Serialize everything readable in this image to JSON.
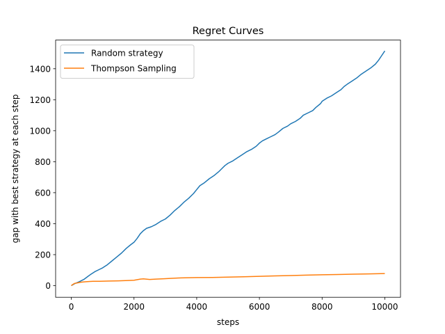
{
  "chart_data": {
    "type": "line",
    "title": "Regret Curves",
    "xlabel": "steps",
    "ylabel": "gap with best strategy at each step",
    "xlim": [
      -500,
      10500
    ],
    "ylim": [
      -75,
      1585
    ],
    "xticks": [
      0,
      2000,
      4000,
      6000,
      8000,
      10000
    ],
    "xtick_labels": [
      "0",
      "2000",
      "4000",
      "6000",
      "8000",
      "10000"
    ],
    "yticks": [
      0,
      200,
      400,
      600,
      800,
      1000,
      1200,
      1400
    ],
    "ytick_labels": [
      "0",
      "200",
      "400",
      "600",
      "800",
      "1000",
      "1200",
      "1400"
    ],
    "grid": false,
    "legend_position": "top-left",
    "series": [
      {
        "name": "Random strategy",
        "color": "#1f77b4",
        "x": [
          0,
          100,
          250,
          400,
          500,
          600,
          750,
          900,
          1000,
          1150,
          1300,
          1450,
          1600,
          1750,
          1900,
          2000,
          2100,
          2200,
          2300,
          2400,
          2550,
          2700,
          2850,
          3000,
          3150,
          3300,
          3450,
          3600,
          3750,
          3900,
          4000,
          4100,
          4250,
          4400,
          4550,
          4700,
          4800,
          4900,
          5000,
          5150,
          5300,
          5450,
          5600,
          5750,
          5900,
          6000,
          6100,
          6250,
          6350,
          6500,
          6600,
          6750,
          6900,
          7000,
          7150,
          7300,
          7400,
          7550,
          7700,
          7800,
          7950,
          8000,
          8150,
          8300,
          8450,
          8600,
          8700,
          8800,
          8950,
          9100,
          9250,
          9400,
          9550,
          9700,
          9800,
          9900,
          10000
        ],
        "y": [
          0,
          12,
          25,
          40,
          55,
          70,
          90,
          105,
          115,
          135,
          160,
          185,
          210,
          240,
          265,
          280,
          305,
          335,
          355,
          370,
          380,
          395,
          415,
          430,
          455,
          485,
          510,
          540,
          565,
          595,
          620,
          645,
          665,
          690,
          710,
          735,
          755,
          775,
          790,
          805,
          825,
          845,
          865,
          880,
          900,
          920,
          935,
          950,
          960,
          975,
          990,
          1015,
          1030,
          1045,
          1060,
          1080,
          1100,
          1115,
          1130,
          1150,
          1175,
          1190,
          1210,
          1225,
          1245,
          1265,
          1285,
          1300,
          1320,
          1340,
          1365,
          1385,
          1405,
          1430,
          1455,
          1485,
          1515
        ]
      },
      {
        "name": "Thompson Sampling",
        "color": "#ff7f0e",
        "x": [
          0,
          50,
          100,
          200,
          300,
          400,
          500,
          700,
          900,
          1200,
          1500,
          1800,
          2000,
          2200,
          2300,
          2500,
          2700,
          3000,
          3300,
          3500,
          4000,
          4500,
          5000,
          5500,
          6000,
          6500,
          7000,
          7500,
          8000,
          8500,
          9000,
          9500,
          10000
        ],
        "y": [
          0,
          8,
          14,
          18,
          22,
          24,
          26,
          28,
          28,
          30,
          31,
          33,
          35,
          42,
          44,
          40,
          42,
          45,
          48,
          50,
          52,
          53,
          55,
          57,
          60,
          63,
          65,
          68,
          70,
          72,
          74,
          76,
          78
        ]
      }
    ]
  }
}
